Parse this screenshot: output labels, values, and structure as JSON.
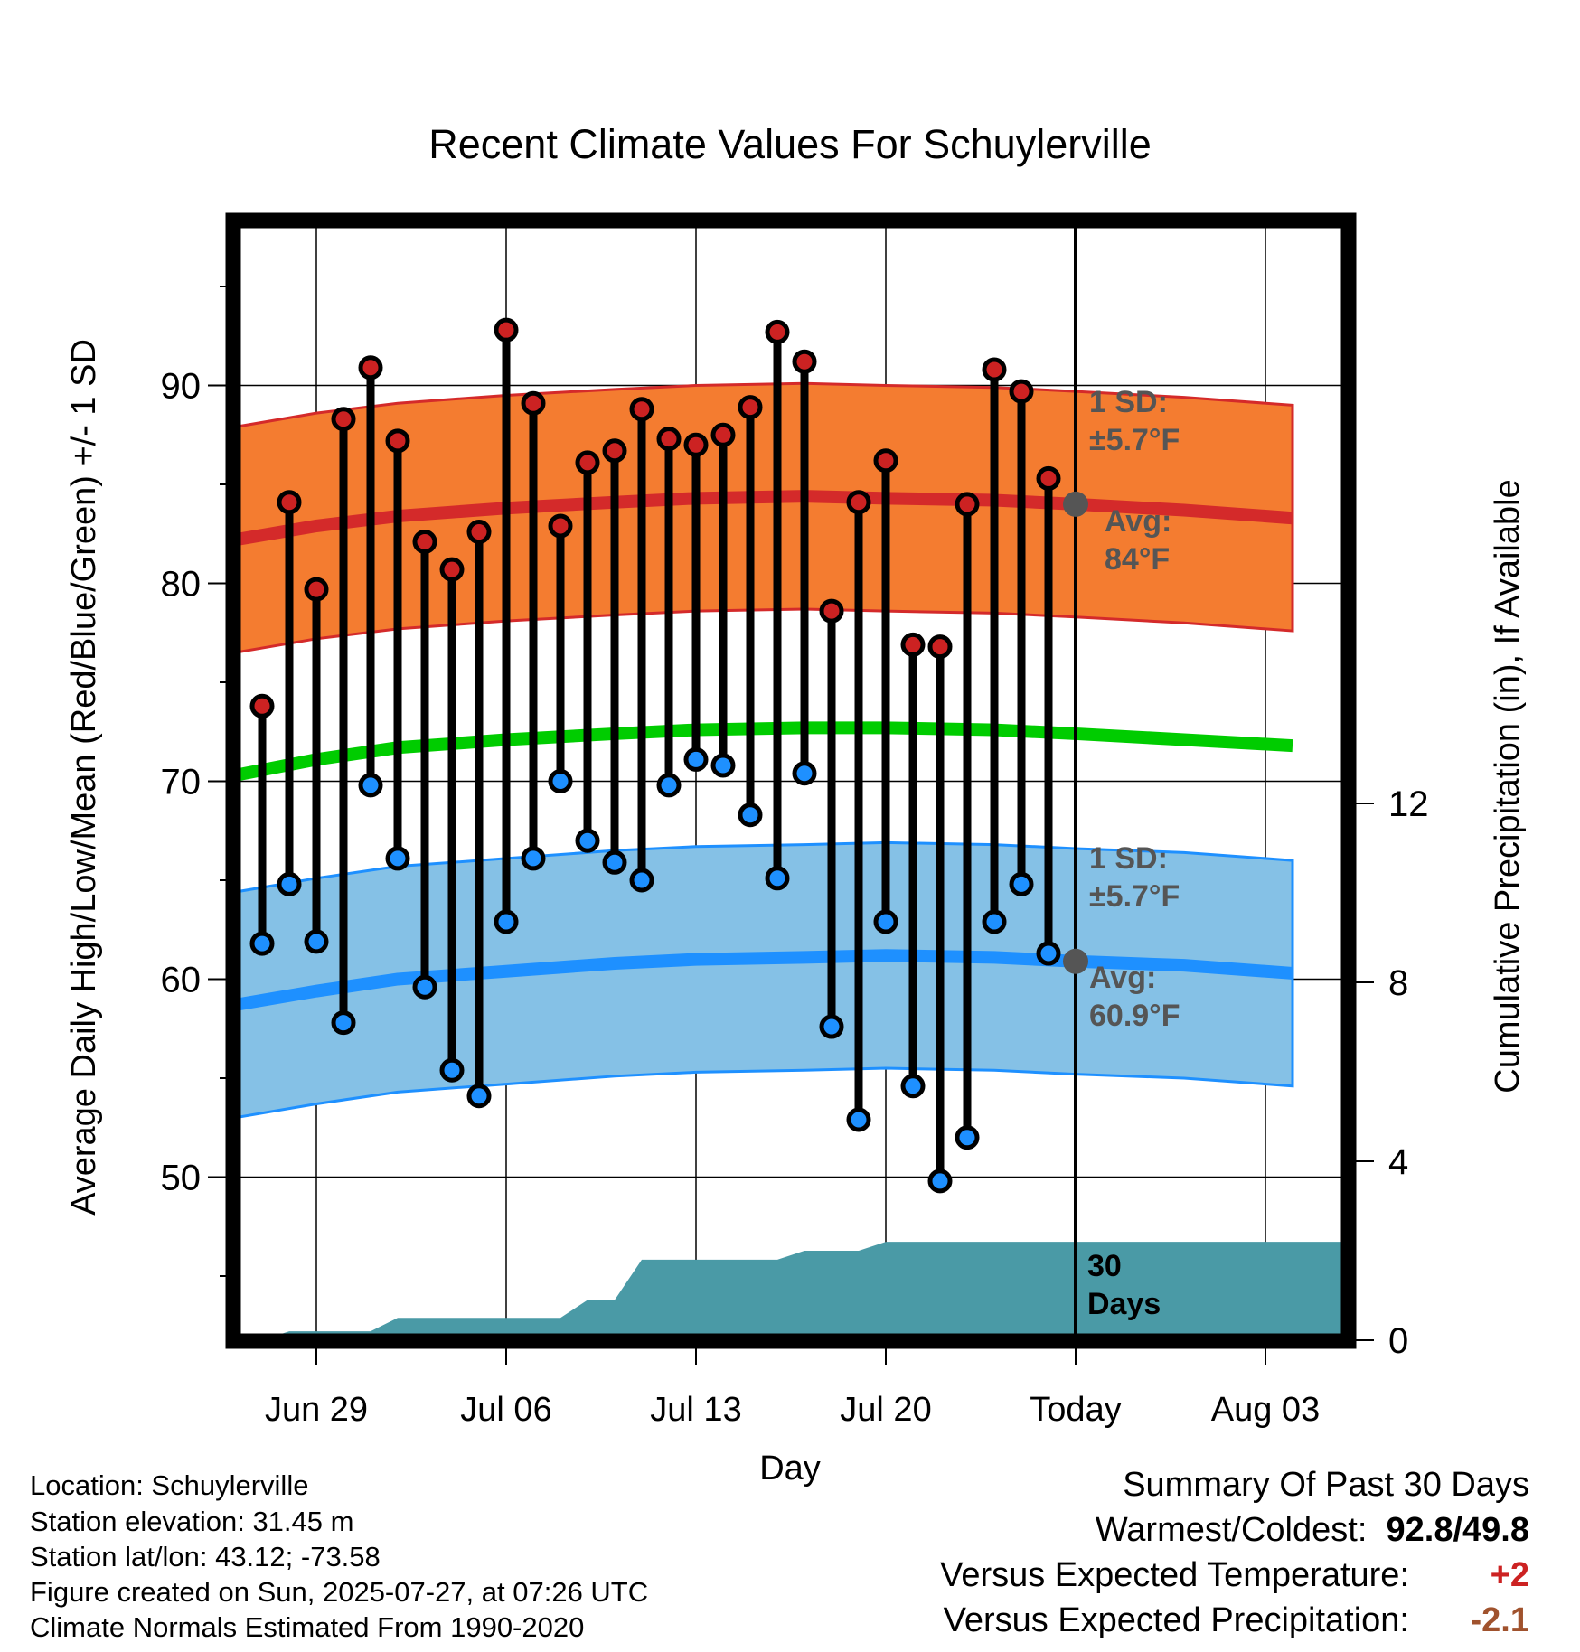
{
  "chart_data": {
    "type": "line",
    "title": "Recent Climate Values For Schuylerville",
    "xlabel": "Day",
    "ylabel": "Average Daily High/Low/Mean (Red/Blue/Green) +/- 1 SD",
    "y2label": "Cumulative Precipitation (in), If Available",
    "x_ticks": [
      "Jun 29",
      "Jul 06",
      "Jul 13",
      "Jul 20",
      "Today",
      "Aug 03"
    ],
    "y_ticks": [
      "50",
      "60",
      "70",
      "80",
      "90"
    ],
    "y2_ticks": [
      "0",
      "4",
      "8",
      "12"
    ],
    "ylim": [
      40.5,
      98
    ],
    "y2lim": [
      0,
      25
    ],
    "days": [
      "Jun 27",
      "Jun 28",
      "Jun 29",
      "Jun 30",
      "Jul 01",
      "Jul 02",
      "Jul 03",
      "Jul 04",
      "Jul 05",
      "Jul 06",
      "Jul 07",
      "Jul 08",
      "Jul 09",
      "Jul 10",
      "Jul 11",
      "Jul 12",
      "Jul 13",
      "Jul 14",
      "Jul 15",
      "Jul 16",
      "Jul 17",
      "Jul 18",
      "Jul 19",
      "Jul 20",
      "Jul 21",
      "Jul 22",
      "Jul 23",
      "Jul 24",
      "Jul 25",
      "Jul 26"
    ],
    "daily_high": [
      73.8,
      84.1,
      79.7,
      88.3,
      90.9,
      87.2,
      82.1,
      80.7,
      82.6,
      92.8,
      89.1,
      82.9,
      86.1,
      86.7,
      88.8,
      87.3,
      87.0,
      87.5,
      88.9,
      92.7,
      91.2,
      78.6,
      84.1,
      86.2,
      76.9,
      76.8,
      84.0,
      90.8,
      89.7,
      85.3
    ],
    "daily_low": [
      61.8,
      64.8,
      61.9,
      57.8,
      69.8,
      66.1,
      59.6,
      55.4,
      54.1,
      62.9,
      66.1,
      70.0,
      67.0,
      65.9,
      65.0,
      69.8,
      71.1,
      70.8,
      68.3,
      65.1,
      70.4,
      57.6,
      52.9,
      62.9,
      54.6,
      49.8,
      52.0,
      62.9,
      64.8,
      61.3
    ],
    "normals_x": [
      "Jun 26",
      "Jun 29",
      "Jul 02",
      "Jul 06",
      "Jul 10",
      "Jul 13",
      "Jul 17",
      "Jul 20",
      "Jul 24",
      "Jul 27",
      "Jul 31",
      "Aug 04"
    ],
    "normal_high": [
      82.2,
      82.9,
      83.4,
      83.8,
      84.1,
      84.3,
      84.4,
      84.3,
      84.2,
      84.0,
      83.7,
      83.3
    ],
    "normal_low": [
      58.7,
      59.4,
      60.0,
      60.4,
      60.8,
      61.0,
      61.1,
      61.2,
      61.1,
      60.9,
      60.7,
      60.3
    ],
    "normal_mean": [
      70.3,
      71.1,
      71.7,
      72.1,
      72.4,
      72.6,
      72.7,
      72.7,
      72.6,
      72.4,
      72.1,
      71.8
    ],
    "high_sd": 5.7,
    "low_sd": 5.7,
    "precip_x": [
      "Jun 27",
      "Jun 28",
      "Jul 01",
      "Jul 02",
      "Jul 08",
      "Jul 09",
      "Jul 10",
      "Jul 11",
      "Jul 16",
      "Jul 17",
      "Jul 19",
      "Jul 20",
      "Jul 26"
    ],
    "precip_cum": [
      0.0,
      0.2,
      0.2,
      0.5,
      0.5,
      0.9,
      0.9,
      1.8,
      1.8,
      2.0,
      2.0,
      2.2,
      2.2
    ],
    "annotations": {
      "high_sd": [
        "1 SD:",
        "±5.7°F"
      ],
      "high_avg": [
        "Avg:",
        "84°F"
      ],
      "low_sd": [
        "1 SD:",
        "±5.7°F"
      ],
      "low_avg": [
        "Avg:",
        "60.9°F"
      ],
      "precip": [
        "30",
        "Days"
      ]
    },
    "colors": {
      "high_band": "#f47c30",
      "high_line": "#d42a2a",
      "mean_line": "#00cc00",
      "low_band": "#85c1e6",
      "low_line": "#1e90ff",
      "high_dot": "#cc2222",
      "low_dot": "#1e90ff",
      "precip": "#4a9aa6",
      "annotation": "#555555"
    }
  },
  "footer": {
    "location": "Location: Schuylerville",
    "elevation": "Station elevation: 31.45 m",
    "latlon": "Station lat/lon: 43.12; -73.58",
    "created": "Figure created on Sun, 2025-07-27, at 07:26 UTC",
    "normals": "Climate Normals Estimated From 1990-2020"
  },
  "summary": {
    "title": "Summary Of Past 30 Days",
    "warm_cold_label": "Warmest/Coldest:",
    "warm_cold_value": "92.8/49.8",
    "temp_label": "Versus Expected Temperature:",
    "temp_value": "+2",
    "temp_color": "#cc2222",
    "precip_label": "Versus Expected Precipitation:",
    "precip_value": "-2.1",
    "precip_color": "#a0522d"
  }
}
